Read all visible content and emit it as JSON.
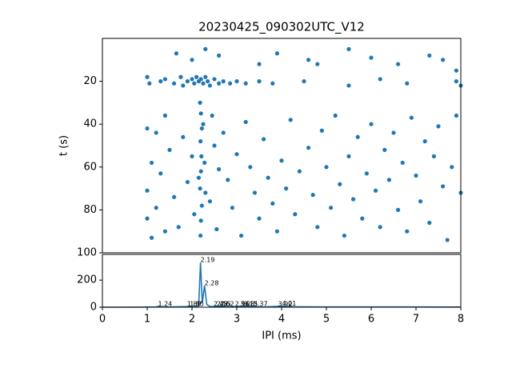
{
  "chart_data": [
    {
      "type": "scatter",
      "title": "20230425_090302UTC_V12",
      "ylabel": "t (s)",
      "color": "#1f77b4",
      "xlim": [
        0,
        8
      ],
      "ylim": [
        100,
        0
      ],
      "yticks": [
        20,
        40,
        60,
        80,
        100
      ],
      "x": [
        1.0,
        1.05,
        1.3,
        1.4,
        1.6,
        1.75,
        1.8,
        1.9,
        2.0,
        2.05,
        2.1,
        2.15,
        2.2,
        2.25,
        2.3,
        2.35,
        2.4,
        2.5,
        2.6,
        2.7,
        2.85,
        3.0,
        3.2,
        3.5,
        3.8,
        4.5,
        5.5,
        6.2,
        6.8,
        7.9,
        8.0,
        1.65,
        2.0,
        2.3,
        2.6,
        3.9,
        4.6,
        5.5,
        6.0,
        6.6,
        7.3,
        7.6,
        3.5,
        4.8,
        7.9,
        2.18,
        2.2,
        2.22,
        2.19,
        2.21,
        2.2,
        2.18,
        2.22,
        2.2,
        2.19,
        2.25,
        2.28,
        2.3,
        2.15,
        1.0,
        1.2,
        1.4,
        1.5,
        1.1,
        1.3,
        1.0,
        1.6,
        1.2,
        1.0,
        1.4,
        1.1,
        1.8,
        1.9,
        1.7,
        2.0,
        2.05,
        2.45,
        2.5,
        2.6,
        2.4,
        2.55,
        2.7,
        2.8,
        2.9,
        3.0,
        3.1,
        3.2,
        3.3,
        3.4,
        3.5,
        3.6,
        3.7,
        3.8,
        3.9,
        4.0,
        4.1,
        4.2,
        4.3,
        4.4,
        4.6,
        4.7,
        4.8,
        4.9,
        5.0,
        5.1,
        5.2,
        5.3,
        5.4,
        5.5,
        5.6,
        5.7,
        5.8,
        5.9,
        6.0,
        6.1,
        6.2,
        6.3,
        6.4,
        6.5,
        6.6,
        6.7,
        6.8,
        6.9,
        7.0,
        7.1,
        7.2,
        7.3,
        7.4,
        7.5,
        7.6,
        7.7,
        7.8,
        7.9,
        8.0
      ],
      "values": [
        18,
        21,
        20,
        19,
        21,
        18,
        22,
        20,
        19,
        21,
        18,
        20,
        19,
        21,
        18,
        20,
        22,
        19,
        21,
        20,
        21,
        20,
        21,
        20,
        21,
        20,
        22,
        19,
        21,
        20,
        22,
        7,
        10,
        5,
        8,
        7,
        10,
        5,
        9,
        12,
        8,
        10,
        12,
        12,
        15,
        30,
        35,
        42,
        48,
        55,
        62,
        70,
        78,
        85,
        92,
        40,
        58,
        72,
        65,
        42,
        44,
        36,
        52,
        58,
        63,
        71,
        74,
        79,
        84,
        90,
        93,
        46,
        67,
        88,
        55,
        82,
        36,
        50,
        61,
        76,
        89,
        44,
        66,
        79,
        54,
        92,
        39,
        60,
        72,
        84,
        47,
        65,
        77,
        90,
        57,
        70,
        38,
        82,
        62,
        51,
        73,
        88,
        43,
        60,
        79,
        36,
        68,
        92,
        55,
        75,
        46,
        84,
        63,
        40,
        71,
        88,
        52,
        66,
        44,
        80,
        58,
        90,
        37,
        64,
        76,
        48,
        86,
        55,
        41,
        69,
        94,
        60,
        36,
        72
      ]
    },
    {
      "type": "line",
      "xlabel": "IPI (ms)",
      "color": "#1f77b4",
      "xlim": [
        0,
        8
      ],
      "xticks": [
        0,
        1,
        2,
        3,
        4,
        5,
        6,
        7,
        8
      ],
      "ylim": [
        0,
        390
      ],
      "yticks": [
        0,
        200
      ],
      "x": [
        0,
        0.5,
        1.0,
        1.2,
        1.24,
        1.3,
        1.6,
        1.89,
        1.95,
        2.05,
        2.15,
        2.19,
        2.23,
        2.28,
        2.33,
        2.4,
        2.48,
        2.55,
        2.62,
        2.8,
        2.96,
        3.08,
        3.15,
        3.37,
        3.6,
        3.92,
        4.01,
        4.3,
        5,
        6,
        7,
        8
      ],
      "values": [
        0,
        0,
        1,
        2,
        6,
        2,
        3,
        5,
        7,
        4,
        10,
        330,
        30,
        160,
        20,
        6,
        5,
        6,
        7,
        3,
        5,
        6,
        7,
        5,
        2,
        6,
        8,
        3,
        2,
        2,
        2,
        1
      ],
      "annotations": [
        {
          "text": "1.24",
          "x": 1.24,
          "y": 6
        },
        {
          "text": "1.89",
          "x": 1.89,
          "y": 5
        },
        {
          "text": "1.95",
          "x": 1.95,
          "y": 7
        },
        {
          "text": "2.19",
          "x": 2.19,
          "y": 330
        },
        {
          "text": "2.28",
          "x": 2.28,
          "y": 160
        },
        {
          "text": "2.48",
          "x": 2.48,
          "y": 5
        },
        {
          "text": "2.55",
          "x": 2.55,
          "y": 6
        },
        {
          "text": "2.62",
          "x": 2.62,
          "y": 7
        },
        {
          "text": "2.96",
          "x": 2.96,
          "y": 5
        },
        {
          "text": "3.08",
          "x": 3.08,
          "y": 6
        },
        {
          "text": "3.15",
          "x": 3.15,
          "y": 7
        },
        {
          "text": "3.37",
          "x": 3.37,
          "y": 5
        },
        {
          "text": "3.92",
          "x": 3.92,
          "y": 6
        },
        {
          "text": "4.01",
          "x": 4.01,
          "y": 8
        }
      ]
    }
  ]
}
